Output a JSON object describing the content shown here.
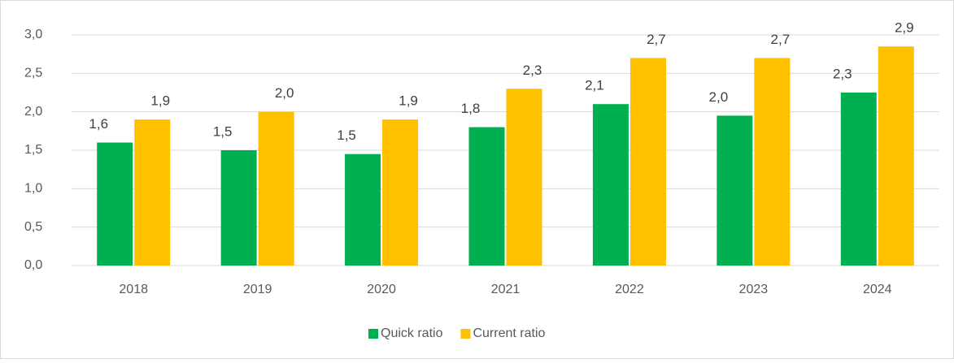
{
  "chart_data": {
    "type": "bar",
    "categories": [
      "2018",
      "2019",
      "2020",
      "2021",
      "2022",
      "2023",
      "2024"
    ],
    "series": [
      {
        "name": "Quick ratio",
        "color": "#00b050",
        "values": [
          1.6,
          1.5,
          1.45,
          1.8,
          2.1,
          1.95,
          2.25
        ],
        "value_labels": [
          "1,6",
          "1,5",
          "1,5",
          "1,8",
          "2,1",
          "2,0",
          "2,3"
        ]
      },
      {
        "name": "Current ratio",
        "color": "#ffc000",
        "values": [
          1.9,
          2.0,
          1.9,
          2.3,
          2.7,
          2.7,
          2.85
        ],
        "value_labels": [
          "1,9",
          "2,0",
          "1,9",
          "2,3",
          "2,7",
          "2,7",
          "2,9"
        ]
      }
    ],
    "ylim": [
      0,
      3
    ],
    "yticks": [
      {
        "value": 0,
        "label": "0,0"
      },
      {
        "value": 0.5,
        "label": "0,5"
      },
      {
        "value": 1,
        "label": "1,0"
      },
      {
        "value": 1.5,
        "label": "1,5"
      },
      {
        "value": 2,
        "label": "2,0"
      },
      {
        "value": 2.5,
        "label": "2,5"
      },
      {
        "value": 3,
        "label": "3,0"
      }
    ],
    "grid": true,
    "legend": "bottom"
  }
}
